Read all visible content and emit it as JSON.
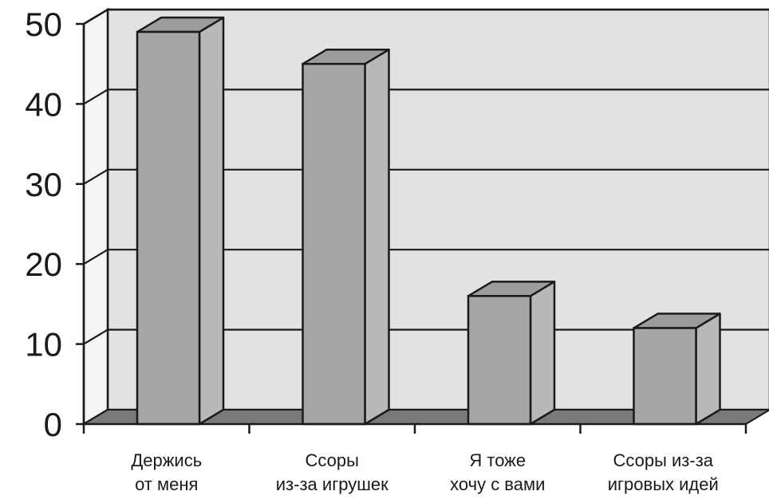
{
  "chart_data": {
    "type": "bar",
    "style": "3d",
    "categories": [
      [
        "Держись",
        "от меня"
      ],
      [
        "Ссоры",
        "из-за игрушек"
      ],
      [
        "Я тоже",
        "хочу с вами"
      ],
      [
        "Ссоры из-за",
        "игровых идей"
      ]
    ],
    "values": [
      49,
      45,
      16,
      12
    ],
    "ylim": [
      0,
      50
    ],
    "yticks": [
      0,
      10,
      20,
      30,
      40,
      50
    ],
    "grid": true,
    "colors": {
      "bar_front": "#a6a6a6",
      "bar_side": "#b8b8b8",
      "bar_top": "#9c9c9c",
      "back_wall": "#e2e2e2",
      "floor": "#7a7a7a",
      "grid": "#1a1a1a"
    }
  }
}
